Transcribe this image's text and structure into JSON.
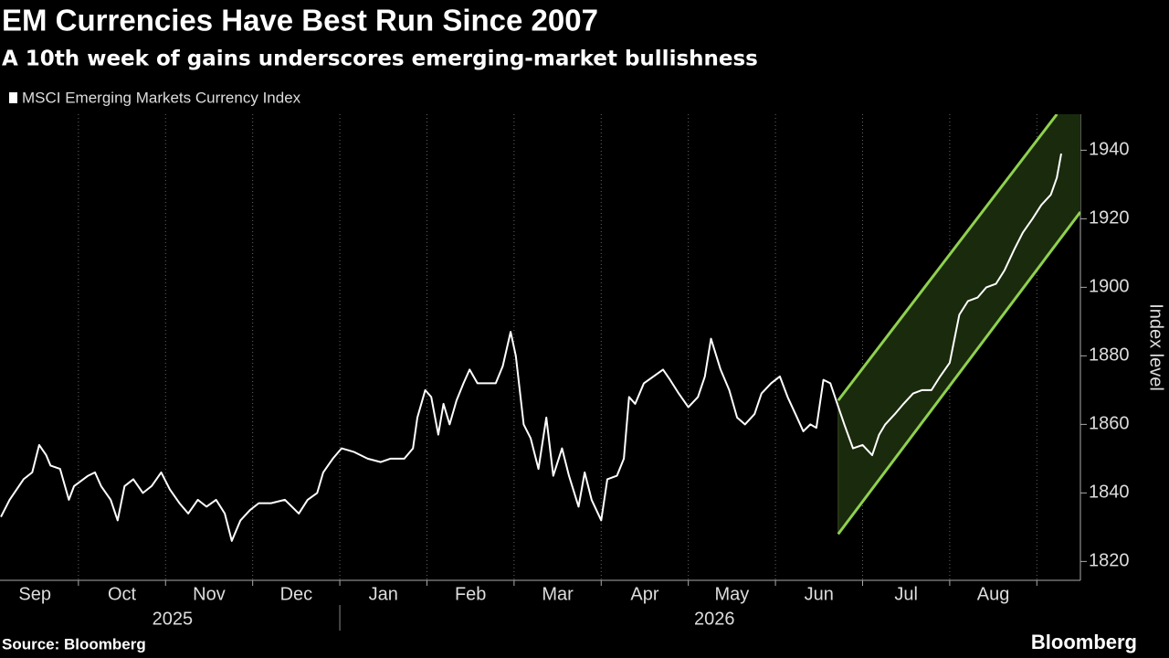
{
  "chart_data": {
    "type": "line",
    "title": "EM Currencies Have Best Run Since 2007",
    "subtitle": "A 10th week of gains underscores emerging-market bullishness",
    "y_axis_label": "Index level",
    "y_axis_side": "right",
    "source": "Source: Bloomberg",
    "brand": "Bloomberg",
    "xlim": [
      0.1,
      12.5
    ],
    "xticks": [
      {
        "value": 0.5,
        "label": "Sep"
      },
      {
        "value": 1.5,
        "label": "Oct"
      },
      {
        "value": 2.5,
        "label": "Nov"
      },
      {
        "value": 3.5,
        "label": "Dec"
      },
      {
        "value": 4.5,
        "label": "Jan"
      },
      {
        "value": 5.5,
        "label": "Feb"
      },
      {
        "value": 6.5,
        "label": "Mar"
      },
      {
        "value": 7.5,
        "label": "Apr"
      },
      {
        "value": 8.5,
        "label": "May"
      },
      {
        "value": 9.5,
        "label": "Jun"
      },
      {
        "value": 10.5,
        "label": "Jul"
      },
      {
        "value": 11.5,
        "label": "Aug"
      }
    ],
    "year_labels": [
      {
        "value": 2.08,
        "label": "2025"
      },
      {
        "value": 8.3,
        "label": "2026"
      }
    ],
    "ylim": [
      1814.5,
      1950.5
    ],
    "yticks": [
      1820,
      1840,
      1860,
      1880,
      1900,
      1920,
      1940
    ],
    "grid": true,
    "series": [
      {
        "name": "MSCI Emerging Markets Currency Index",
        "color": "#ffffff",
        "x": [
          0.11,
          0.21,
          0.37,
          0.47,
          0.55,
          0.63,
          0.68,
          0.79,
          0.89,
          0.95,
          1.11,
          1.19,
          1.26,
          1.37,
          1.45,
          1.53,
          1.63,
          1.74,
          1.84,
          1.95,
          2.05,
          2.16,
          2.26,
          2.37,
          2.47,
          2.58,
          2.68,
          2.76,
          2.86,
          2.97,
          3.07,
          3.21,
          3.37,
          3.53,
          3.63,
          3.74,
          3.81,
          3.92,
          4.02,
          4.16,
          4.32,
          4.47,
          4.58,
          4.74,
          4.84,
          4.89,
          4.98,
          5.05,
          5.13,
          5.19,
          5.26,
          5.34,
          5.42,
          5.49,
          5.58,
          5.68,
          5.79,
          5.87,
          5.96,
          6.02,
          6.11,
          6.19,
          6.28,
          6.37,
          6.45,
          6.55,
          6.63,
          6.74,
          6.81,
          6.89,
          7.0,
          7.07,
          7.18,
          7.26,
          7.32,
          7.39,
          7.49,
          7.6,
          7.71,
          7.79,
          7.89,
          8.0,
          8.11,
          8.19,
          8.26,
          8.37,
          8.47,
          8.56,
          8.65,
          8.76,
          8.84,
          8.95,
          9.05,
          9.14,
          9.23,
          9.32,
          9.4,
          9.47,
          9.55,
          9.63,
          9.71,
          9.79,
          9.89,
          10.0,
          10.11,
          10.19,
          10.26,
          10.37,
          10.47,
          10.58,
          10.68,
          10.79,
          10.89,
          11.0,
          11.11,
          11.21,
          11.32,
          11.42,
          11.53,
          11.63,
          11.74,
          11.84,
          11.95,
          12.05,
          12.16,
          12.23,
          12.28
        ],
        "values": [
          1833,
          1838,
          1844,
          1846,
          1854,
          1851,
          1848,
          1847,
          1838,
          1842,
          1845,
          1846,
          1842,
          1838,
          1832,
          1842,
          1844,
          1840,
          1842,
          1846,
          1841,
          1837,
          1834,
          1838,
          1836,
          1838,
          1834,
          1826,
          1832,
          1835,
          1837,
          1837,
          1838,
          1834,
          1838,
          1840,
          1846,
          1850,
          1853,
          1852,
          1850,
          1849,
          1850,
          1850,
          1853,
          1862,
          1870,
          1868,
          1857,
          1866,
          1860,
          1867,
          1872,
          1876,
          1872,
          1872,
          1872,
          1877,
          1887,
          1880,
          1860,
          1856,
          1847,
          1862,
          1845,
          1853,
          1845,
          1836,
          1846,
          1838,
          1832,
          1844,
          1845,
          1850,
          1868,
          1866,
          1872,
          1874,
          1876,
          1873,
          1869,
          1865,
          1868,
          1874,
          1885,
          1876,
          1870,
          1862,
          1860,
          1863,
          1869,
          1872,
          1874,
          1868,
          1863,
          1858,
          1860,
          1859,
          1873,
          1872,
          1866,
          1860,
          1853,
          1854,
          1851,
          1857,
          1860,
          1863,
          1866,
          1869,
          1870,
          1870,
          1874,
          1878,
          1892,
          1896,
          1897,
          1900,
          1901,
          1905,
          1911,
          1916,
          1920,
          1924,
          1927,
          1932,
          1939
        ]
      }
    ],
    "channel": {
      "color": "#8fd14f",
      "fill": "#1a2a0c",
      "x": [
        9.72,
        12.23
      ],
      "upper": [
        1867,
        1950.5
      ],
      "lower_x": [
        9.72,
        12.5
      ],
      "lower": [
        1828,
        1922
      ]
    }
  }
}
